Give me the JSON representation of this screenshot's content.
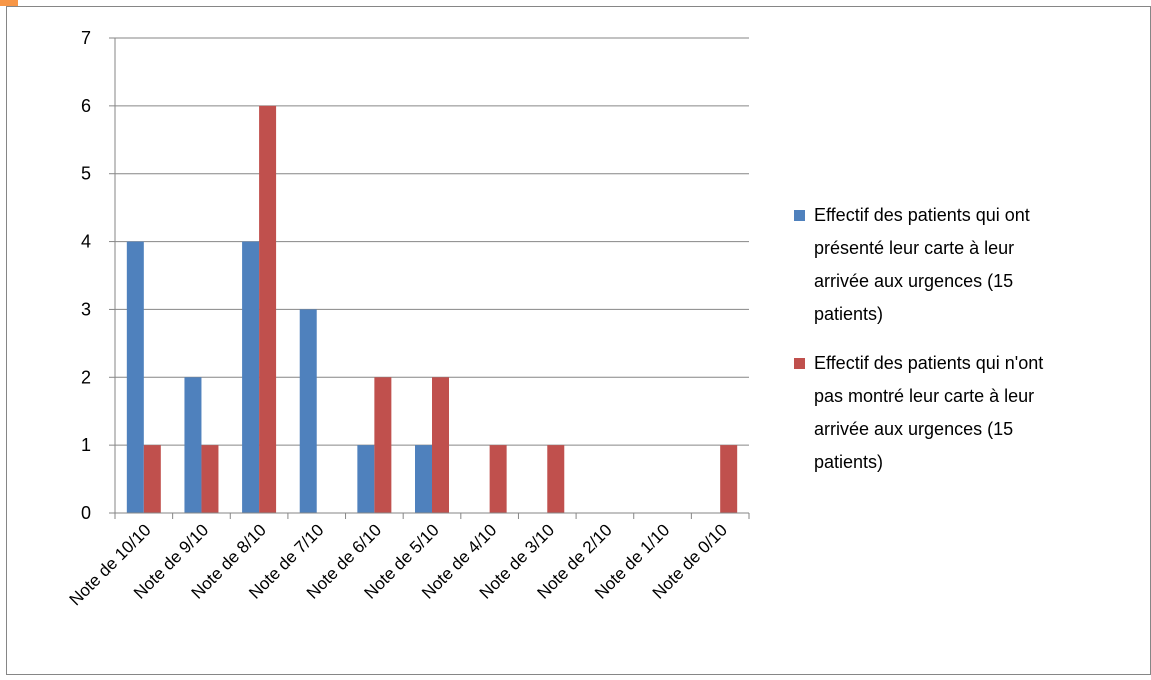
{
  "chart_data": {
    "type": "bar",
    "title": "",
    "xlabel": "",
    "ylabel": "",
    "categories": [
      "Note de 10/10",
      "Note de 9/10",
      "Note de 8/10",
      "Note de 7/10",
      "Note de 6/10",
      "Note de 5/10",
      "Note de 4/10",
      "Note de 3/10",
      "Note de 2/10",
      "Note de 1/10",
      "Note de 0/10"
    ],
    "series": [
      {
        "name": "Effectif des patients qui ont présenté leur carte à leur arrivée aux urgences (15 patients)",
        "legend_lines": [
          "Effectif des patients qui ont",
          "présenté leur carte à leur",
          "arrivée aux urgences (15",
          "patients)"
        ],
        "color": "#4F81BD",
        "values": [
          4,
          2,
          4,
          3,
          1,
          1,
          0,
          0,
          0,
          0,
          0
        ]
      },
      {
        "name": "Effectif des patients qui n'ont pas montré leur carte à leur arrivée aux urgences (15 patients)",
        "legend_lines": [
          "Effectif des patients qui n'ont",
          "pas montré leur carte à leur",
          "arrivée aux urgences (15",
          "patients)"
        ],
        "color": "#C0504D",
        "values": [
          1,
          1,
          6,
          0,
          2,
          2,
          1,
          1,
          0,
          0,
          1
        ]
      }
    ],
    "ylim": [
      0,
      7
    ],
    "yticks": [
      0,
      1,
      2,
      3,
      4,
      5,
      6,
      7
    ],
    "grid": true,
    "legend_position": "right"
  },
  "colors": {
    "grid": "#868686",
    "frame": "#868686",
    "accent": "#F79646"
  }
}
